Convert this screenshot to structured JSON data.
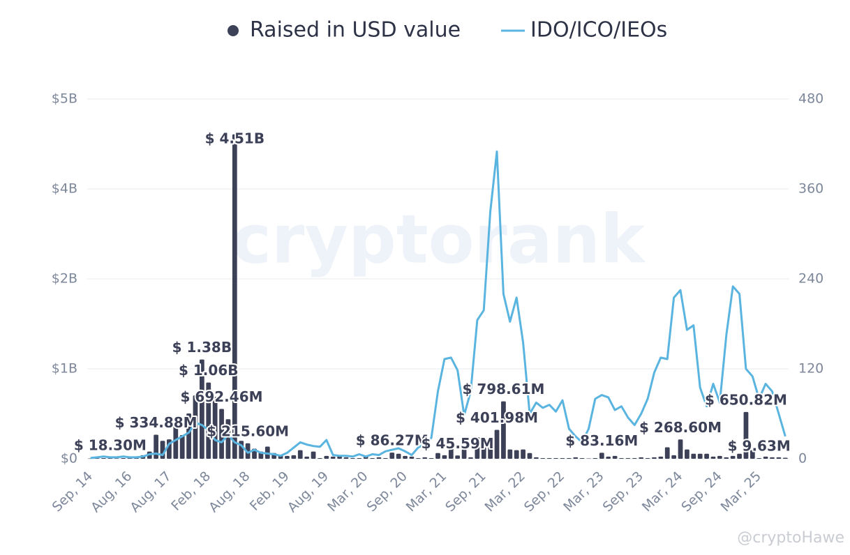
{
  "chart_data": {
    "type": "bar",
    "watermark": "cryptorank",
    "credit": "@cryptoHawe",
    "categories": [
      "Sep, 14",
      null,
      null,
      null,
      null,
      null,
      "Aug, 16",
      null,
      null,
      null,
      null,
      null,
      "Aug, 17",
      null,
      null,
      null,
      null,
      null,
      "Feb, 18",
      null,
      null,
      null,
      null,
      null,
      "Aug, 18",
      null,
      null,
      null,
      null,
      null,
      "Feb, 19",
      null,
      null,
      null,
      null,
      null,
      "Aug, 19",
      null,
      null,
      null,
      null,
      null,
      "Mar, 20",
      null,
      null,
      null,
      null,
      null,
      "Sep, 20",
      null,
      null,
      null,
      null,
      null,
      "Mar, 21",
      null,
      null,
      null,
      null,
      null,
      "Sep, 21",
      null,
      null,
      null,
      null,
      null,
      "Mar, 22",
      null,
      null,
      null,
      null,
      null,
      "Sep, 22",
      null,
      null,
      null,
      null,
      null,
      "Mar, 23",
      null,
      null,
      null,
      null,
      null,
      "Sep, 23",
      null,
      null,
      null,
      null,
      null,
      "Mar, 24",
      null,
      null,
      null,
      null,
      null,
      "Sep, 24",
      null,
      null,
      null,
      null,
      null,
      "Mar, 25",
      null,
      null,
      null,
      null
    ],
    "series": [
      {
        "name": "Raised in USD value",
        "type": "bar",
        "color": "#3d4158",
        "axis": "y",
        "values": [
          0.005,
          0.008,
          0.01,
          0.0183,
          0.006,
          0.01,
          0.012,
          0.02,
          0.05,
          0.1,
          0.33488,
          0.25,
          0.27,
          0.45,
          0.33,
          0.63,
          0.88,
          1.38,
          1.06,
          0.86,
          0.69246,
          0.55,
          4.51,
          0.25,
          0.2156,
          0.14,
          0.1,
          0.17,
          0.08,
          0.05,
          0.04,
          0.05,
          0.12,
          0.03,
          0.1,
          0.01,
          0.04,
          0.03,
          0.05,
          0.02,
          0.01,
          0.01,
          0.03,
          0.01,
          0.02,
          0.01,
          0.08627,
          0.07,
          0.04,
          0.03,
          0.01,
          0.02,
          0.01,
          0.08,
          0.05,
          0.15,
          0.04559,
          0.13,
          0.02,
          0.3,
          0.16,
          0.17,
          0.40198,
          0.79861,
          0.13,
          0.12,
          0.13,
          0.08,
          0.02,
          0.01,
          0.01,
          0.01,
          0.01,
          0.01,
          0.02,
          0.01,
          0.005,
          0.01,
          0.08316,
          0.03,
          0.04,
          0.01,
          0.01,
          0.01,
          0.02,
          0.01,
          0.02,
          0.03,
          0.16,
          0.05,
          0.2686,
          0.13,
          0.07,
          0.07,
          0.07,
          0.03,
          0.04,
          0.02,
          0.04,
          0.07,
          0.65082,
          0.12,
          0.00963,
          0.03,
          0.02,
          0.02,
          0.015
        ],
        "value_labels": [
          null,
          null,
          null,
          "$ 18.30M",
          null,
          null,
          null,
          null,
          null,
          null,
          "$ 334.88M",
          null,
          null,
          null,
          null,
          null,
          null,
          "$ 1.38B",
          "$ 1.06B",
          null,
          "$ 692.46M",
          null,
          "$ 4.51B",
          null,
          "$ 215.60M",
          null,
          null,
          null,
          null,
          null,
          null,
          null,
          null,
          null,
          null,
          null,
          null,
          null,
          null,
          null,
          null,
          null,
          null,
          null,
          null,
          null,
          "$ 86.27M",
          null,
          null,
          null,
          null,
          null,
          null,
          null,
          null,
          null,
          "$ 45.59M",
          null,
          null,
          null,
          null,
          null,
          "$ 401.98M",
          "$ 798.61M",
          null,
          null,
          null,
          null,
          null,
          null,
          null,
          null,
          null,
          null,
          null,
          null,
          null,
          null,
          "$ 83.16M",
          null,
          null,
          null,
          null,
          null,
          null,
          null,
          null,
          null,
          null,
          null,
          "$ 268.60M",
          null,
          null,
          null,
          null,
          null,
          null,
          null,
          null,
          null,
          "$ 650.82M",
          null,
          "$ 9.63M",
          null,
          null,
          null,
          null
        ]
      },
      {
        "name": "IDO/ICO/IEOs",
        "type": "line",
        "color": "#5ab4e0",
        "axis": "y2",
        "values": [
          1,
          2,
          3,
          2,
          2,
          3,
          2,
          2,
          3,
          6,
          7,
          5,
          20,
          25,
          30,
          35,
          48,
          45,
          38,
          25,
          22,
          32,
          22,
          18,
          8,
          12,
          8,
          7,
          6,
          4,
          8,
          15,
          22,
          19,
          17,
          16,
          25,
          5,
          4,
          4,
          3,
          6,
          3,
          6,
          5,
          10,
          12,
          14,
          10,
          5,
          15,
          20,
          28,
          90,
          133,
          135,
          118,
          58,
          90,
          185,
          198,
          330,
          410,
          220,
          183,
          215,
          155,
          60,
          75,
          68,
          72,
          63,
          78,
          40,
          30,
          22,
          40,
          80,
          85,
          82,
          65,
          70,
          55,
          45,
          60,
          80,
          115,
          135,
          133,
          215,
          225,
          172,
          178,
          95,
          70,
          100,
          75,
          165,
          230,
          220,
          120,
          110,
          80,
          100,
          90,
          60,
          30
        ]
      }
    ],
    "ylim": [
      0,
      5
    ],
    "yticks": [
      {
        "value": 0,
        "label": "$0"
      },
      {
        "value": 1.25,
        "label": "$1B"
      },
      {
        "value": 2.5,
        "label": "$2B"
      },
      {
        "value": 3.75,
        "label": "$4B"
      },
      {
        "value": 5,
        "label": "$5B"
      }
    ],
    "y2lim": [
      0,
      480
    ],
    "y2ticks": [
      0,
      120,
      240,
      360,
      480
    ],
    "grid": true,
    "legend": "top"
  }
}
